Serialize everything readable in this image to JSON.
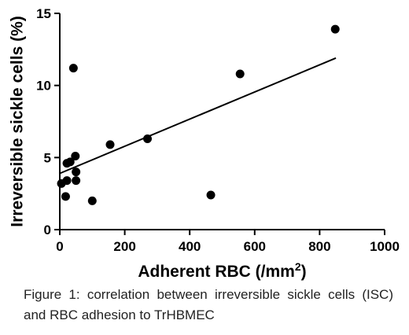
{
  "chart_data": {
    "type": "scatter",
    "title": "",
    "xlabel": "Adherent RBC (/mm",
    "xlabel_superscript": "2",
    "xlabel_suffix": ")",
    "ylabel": "Irreversible sickle cells (%)",
    "xlim": [
      0,
      1000
    ],
    "ylim": [
      0,
      15
    ],
    "x_ticks": [
      0,
      200,
      400,
      600,
      800,
      1000
    ],
    "y_ticks": [
      0,
      5,
      10,
      15
    ],
    "grid": false,
    "legend": "none",
    "points": [
      {
        "x": 5,
        "y": 3.2
      },
      {
        "x": 18,
        "y": 2.3
      },
      {
        "x": 22,
        "y": 3.4
      },
      {
        "x": 22,
        "y": 4.6
      },
      {
        "x": 32,
        "y": 4.7
      },
      {
        "x": 42,
        "y": 11.2
      },
      {
        "x": 48,
        "y": 5.1
      },
      {
        "x": 50,
        "y": 4.0
      },
      {
        "x": 50,
        "y": 3.4
      },
      {
        "x": 100,
        "y": 2.0
      },
      {
        "x": 155,
        "y": 5.9
      },
      {
        "x": 270,
        "y": 6.3
      },
      {
        "x": 465,
        "y": 2.4
      },
      {
        "x": 555,
        "y": 10.8
      },
      {
        "x": 848,
        "y": 13.9
      }
    ],
    "trendline": {
      "x": [
        0,
        850
      ],
      "y": [
        3.9,
        11.9
      ]
    },
    "colors": {
      "marker": "#000000",
      "line": "#000000"
    }
  },
  "caption": "Figure 1: correlation between irreversible sickle cells (ISC) and RBC adhesion to TrHBMEC"
}
